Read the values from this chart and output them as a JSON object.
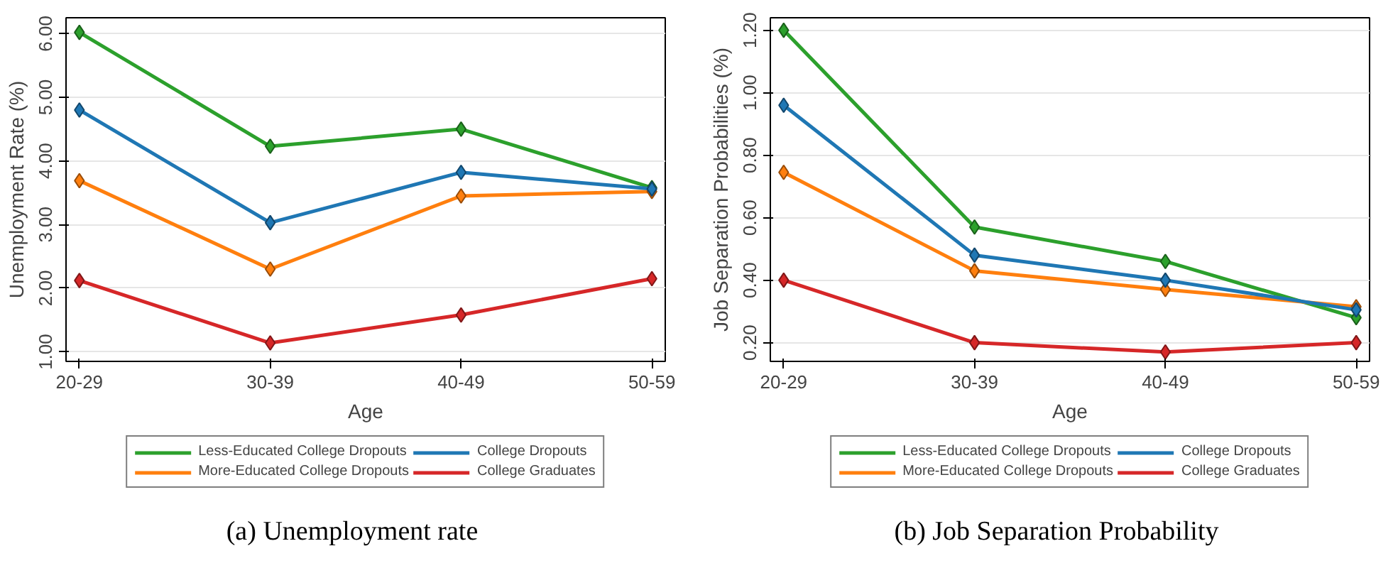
{
  "chart_data": [
    {
      "type": "line",
      "xlabel": "Age",
      "ylabel": "Unemployment Rate (%)",
      "categories": [
        "20-29",
        "30-39",
        "40-49",
        "50-59"
      ],
      "series": [
        {
          "name": "Less-Educated College Dropouts",
          "color": "#2ca02c",
          "values": [
            6.02,
            4.23,
            4.5,
            3.58
          ]
        },
        {
          "name": "More-Educated College Dropouts",
          "color": "#ff7f0e",
          "values": [
            3.69,
            2.3,
            3.45,
            3.52
          ]
        },
        {
          "name": "College Dropouts",
          "color": "#1f77b4",
          "values": [
            4.8,
            3.03,
            3.82,
            3.56
          ]
        },
        {
          "name": "College Graduates",
          "color": "#d62728",
          "values": [
            2.12,
            1.14,
            1.58,
            2.15
          ]
        }
      ],
      "ylim": [
        0.85,
        6.25
      ],
      "yticks": [
        {
          "value": 1,
          "label": "1.00"
        },
        {
          "value": 2,
          "label": "2.00"
        },
        {
          "value": 3,
          "label": "3.00"
        },
        {
          "value": 4,
          "label": "4.00"
        },
        {
          "value": 5,
          "label": "5.00"
        },
        {
          "value": 6,
          "label": "6.00"
        }
      ],
      "grid": "y",
      "legend": "bottom",
      "marker": "diamond",
      "line_style": "solid",
      "annotations": [
        "(a)  Unemployment rate"
      ]
    },
    {
      "type": "line",
      "xlabel": "Age",
      "ylabel": "Job Separation Probabilities (%)",
      "categories": [
        "20-29",
        "30-39",
        "40-49",
        "50-59"
      ],
      "series": [
        {
          "name": "Less-Educated College Dropouts",
          "color": "#2ca02c",
          "values": [
            1.2,
            0.57,
            0.46,
            0.28
          ]
        },
        {
          "name": "More-Educated College Dropouts",
          "color": "#ff7f0e",
          "values": [
            0.745,
            0.43,
            0.37,
            0.315
          ]
        },
        {
          "name": "College Dropouts",
          "color": "#1f77b4",
          "values": [
            0.96,
            0.48,
            0.4,
            0.305
          ]
        },
        {
          "name": "College Graduates",
          "color": "#d62728",
          "values": [
            0.4,
            0.2,
            0.17,
            0.2
          ]
        }
      ],
      "ylim": [
        0.14,
        1.24
      ],
      "yticks": [
        {
          "value": 0.2,
          "label": "0.20"
        },
        {
          "value": 0.4,
          "label": "0.40"
        },
        {
          "value": 0.6,
          "label": "0.60"
        },
        {
          "value": 0.8,
          "label": "0.80"
        },
        {
          "value": 1.0,
          "label": "1.00"
        },
        {
          "value": 1.2,
          "label": "1.20"
        }
      ],
      "grid": "y",
      "legend": "bottom",
      "marker": "diamond",
      "line_style": "solid",
      "annotations": [
        "(b)  Job Separation Probability"
      ]
    }
  ]
}
